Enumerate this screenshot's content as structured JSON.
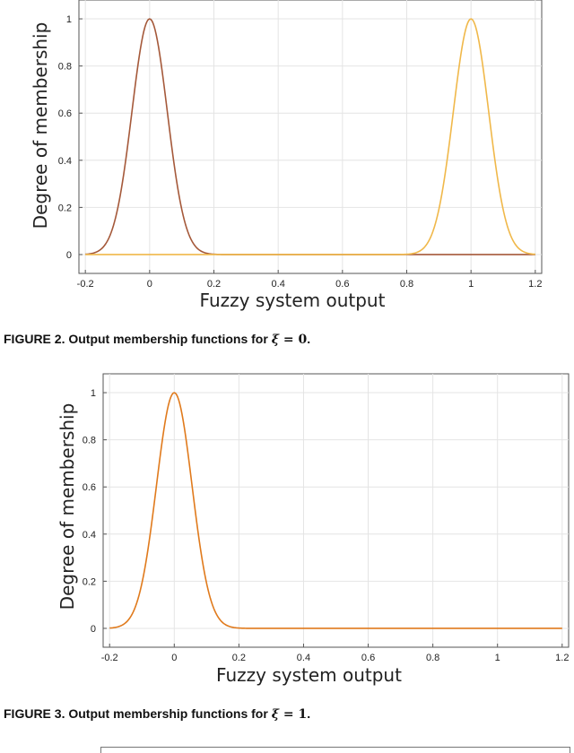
{
  "chart_data": [
    {
      "type": "line",
      "ylabel": "Degree of membership",
      "xlabel": "Fuzzy system output",
      "xlim": [
        -0.22,
        1.22
      ],
      "ylim": [
        -0.08,
        1.08
      ],
      "x_ticks": [
        -0.2,
        0,
        0.2,
        0.4,
        0.6,
        0.8,
        1,
        1.2
      ],
      "x_tick_labels": [
        "-0.2",
        "0",
        "0.2",
        "0.4",
        "0.6",
        "0.8",
        "1",
        "1.2"
      ],
      "y_ticks": [
        0,
        0.2,
        0.4,
        0.6,
        0.8,
        1
      ],
      "y_tick_labels": [
        "0",
        "0.2",
        "0.4",
        "0.6",
        "0.8",
        "1"
      ],
      "grid": true,
      "series": [
        {
          "color": "#a5593a",
          "shape": "gaussian",
          "center": 0,
          "sigma": 0.055,
          "x": [
            -0.2,
            -0.15,
            -0.1,
            -0.05,
            0,
            0.05,
            0.1,
            0.15,
            0.2,
            1.2
          ],
          "y": [
            0,
            0.03,
            0.19,
            0.66,
            1,
            0.66,
            0.19,
            0.03,
            0,
            0
          ]
        },
        {
          "color": "#f0b84a",
          "shape": "gaussian",
          "center": 1,
          "sigma": 0.055,
          "x": [
            -0.2,
            0.8,
            0.85,
            0.9,
            0.95,
            1,
            1.05,
            1.1,
            1.15,
            1.2
          ],
          "y": [
            0,
            0,
            0.03,
            0.19,
            0.66,
            1,
            0.66,
            0.19,
            0.03,
            0
          ]
        }
      ]
    },
    {
      "type": "line",
      "ylabel": "Degree of membership",
      "xlabel": "Fuzzy system output",
      "xlim": [
        -0.22,
        1.22
      ],
      "ylim": [
        -0.08,
        1.08
      ],
      "x_ticks": [
        -0.2,
        0,
        0.2,
        0.4,
        0.6,
        0.8,
        1,
        1.2
      ],
      "x_tick_labels": [
        "-0.2",
        "0",
        "0.2",
        "0.4",
        "0.6",
        "0.8",
        "1",
        "1.2"
      ],
      "y_ticks": [
        0,
        0.2,
        0.4,
        0.6,
        0.8,
        1
      ],
      "y_tick_labels": [
        "0",
        "0.2",
        "0.4",
        "0.6",
        "0.8",
        "1"
      ],
      "grid": true,
      "series": [
        {
          "color": "#e07a1c",
          "shape": "gaussian",
          "center": 0,
          "sigma": 0.055,
          "x": [
            -0.2,
            -0.15,
            -0.1,
            -0.05,
            0,
            0.05,
            0.1,
            0.15,
            0.2,
            1.2
          ],
          "y": [
            0,
            0.03,
            0.19,
            0.66,
            1,
            0.66,
            0.19,
            0.03,
            0,
            0
          ]
        }
      ]
    }
  ],
  "captions": {
    "fig2": {
      "prefix": "FIGURE 2.   Output membership functions for ",
      "symbol": "ξ",
      "equals": " = ",
      "value": "0",
      "end": "."
    },
    "fig3": {
      "prefix": "FIGURE 3.   Output membership functions for ",
      "symbol": "ξ",
      "equals": " = ",
      "value": "1",
      "end": "."
    }
  }
}
